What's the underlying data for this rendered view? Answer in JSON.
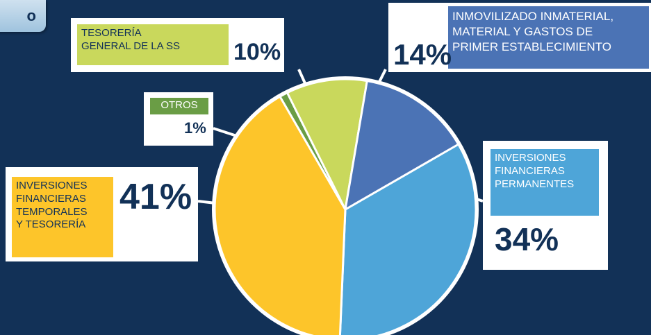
{
  "tab": {
    "label": "o"
  },
  "colors": {
    "background": "#123157",
    "accent_dark": "#123157"
  },
  "chart_data": {
    "type": "pie",
    "title": "",
    "slices": [
      {
        "label": "INVERSIONES FINANCIERAS PERMANENTES",
        "lines": [
          "INVERSIONES",
          "FINANCIERAS",
          "PERMANENTES"
        ],
        "value": 34,
        "display": "34%",
        "color": "#4ea5d8"
      },
      {
        "label": "INVERSIONES FINANCIERAS TEMPORALES Y TESORERÍA",
        "lines": [
          "INVERSIONES",
          "FINANCIERAS",
          "TEMPORALES",
          "Y TESORERÍA"
        ],
        "value": 41,
        "display": "41%",
        "color": "#fdc52a"
      },
      {
        "label": "OTROS",
        "lines": [
          "OTROS"
        ],
        "value": 1,
        "display": "1%",
        "color": "#6a9d45"
      },
      {
        "label": "TESORERÍA GENERAL DE LA SS",
        "lines": [
          "TESORERÍA",
          "GENERAL DE LA SS"
        ],
        "value": 10,
        "display": "10%",
        "color": "#c9d85c"
      },
      {
        "label": "INMOVILIZADO INMATERIAL, MATERIAL Y GASTOS DE PRIMER ESTABLECIMIENTO",
        "lines": [
          "INMOVILIZADO INMATERIAL,",
          "MATERIAL Y GASTOS DE",
          "PRIMER ESTABLECIMIENTO"
        ],
        "value": 14,
        "display": "14%",
        "color": "#4b73b5"
      }
    ],
    "legend": "none",
    "data_labels": "callouts"
  }
}
